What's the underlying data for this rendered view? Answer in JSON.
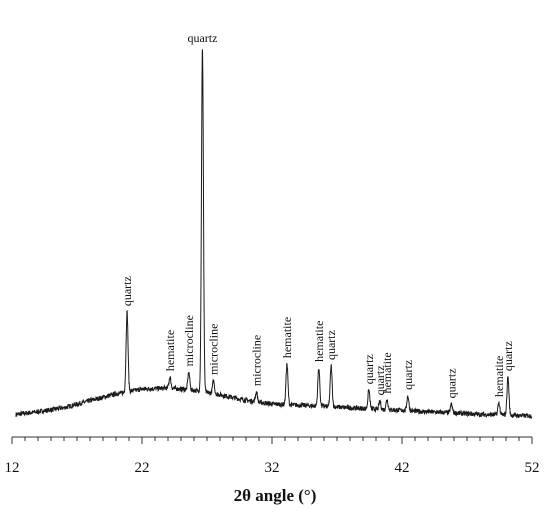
{
  "chart_data": {
    "type": "line",
    "title": "",
    "xlabel": "2θ angle (°)",
    "ylabel": "",
    "xlim": [
      12,
      52
    ],
    "x_ticks": [
      12,
      22,
      32,
      42,
      52
    ],
    "x_tick_labels": [
      "12",
      "22",
      "32",
      "42",
      "52"
    ],
    "x_minor_step": 1,
    "y_axis_visible": false,
    "grid": false,
    "legend": "none",
    "line_color": "#1a1a1a",
    "intensity_scale": [
      0,
      100
    ],
    "baseline_profile": [
      [
        12.3,
        1.5
      ],
      [
        14,
        2.2
      ],
      [
        16,
        3.3
      ],
      [
        18,
        5.2
      ],
      [
        20,
        7.0
      ],
      [
        22,
        8.3
      ],
      [
        24,
        8.6
      ],
      [
        26,
        8.0
      ],
      [
        28,
        6.8
      ],
      [
        30,
        5.3
      ],
      [
        32,
        4.3
      ],
      [
        34,
        4.0
      ],
      [
        36,
        3.7
      ],
      [
        38,
        3.3
      ],
      [
        40,
        2.9
      ],
      [
        42,
        2.6
      ],
      [
        44,
        2.2
      ],
      [
        46,
        1.9
      ],
      [
        48,
        1.5
      ],
      [
        50,
        1.3
      ],
      [
        52,
        1.1
      ]
    ],
    "peaks": [
      {
        "x": 20.85,
        "y": 29.0,
        "label": "quartz"
      },
      {
        "x": 24.15,
        "y": 11.5,
        "label": "hematite"
      },
      {
        "x": 25.6,
        "y": 12.8,
        "label": "microcline"
      },
      {
        "x": 26.65,
        "y": 100.0,
        "label": "quartz"
      },
      {
        "x": 27.5,
        "y": 10.5,
        "label": "microcline"
      },
      {
        "x": 30.8,
        "y": 7.5,
        "label": "microcline"
      },
      {
        "x": 33.15,
        "y": 15.0,
        "label": "hematite"
      },
      {
        "x": 35.6,
        "y": 14.0,
        "label": "hematite"
      },
      {
        "x": 36.55,
        "y": 14.5,
        "label": "quartz"
      },
      {
        "x": 39.45,
        "y": 8.0,
        "label": "quartz"
      },
      {
        "x": 40.3,
        "y": 5.0,
        "label": "quartz"
      },
      {
        "x": 40.85,
        "y": 5.5,
        "label": "hematite"
      },
      {
        "x": 42.45,
        "y": 6.5,
        "label": "quartz"
      },
      {
        "x": 45.8,
        "y": 4.2,
        "label": "quartz"
      },
      {
        "x": 49.45,
        "y": 4.6,
        "label": "hematite"
      },
      {
        "x": 50.15,
        "y": 11.5,
        "label": "quartz"
      }
    ]
  }
}
